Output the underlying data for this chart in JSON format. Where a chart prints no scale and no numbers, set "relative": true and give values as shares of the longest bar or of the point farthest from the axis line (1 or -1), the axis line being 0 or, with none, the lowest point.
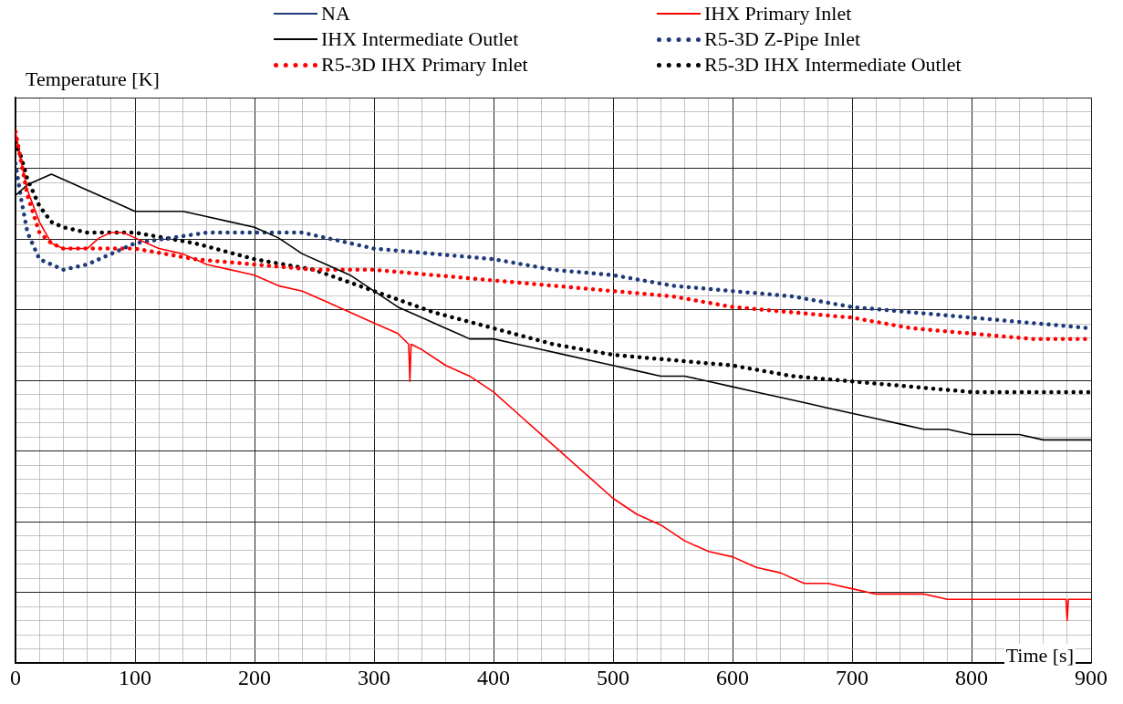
{
  "chart_data": {
    "type": "line",
    "relative": true,
    "xlabel": "Time [s]",
    "ylabel": "Temperature [K]",
    "xlim": [
      0,
      900
    ],
    "xticks": [
      0,
      100,
      200,
      300,
      400,
      500,
      600,
      700,
      800,
      900
    ],
    "grid": true,
    "legend": "top",
    "marker": "none",
    "series": [
      {
        "name": "NA",
        "color": "#1f3a7a",
        "line_style": "solid"
      },
      {
        "name": "IHX Primary Inlet",
        "color": "#ff0000",
        "line_style": "solid",
        "x": [
          0,
          5,
          10,
          20,
          30,
          40,
          50,
          60,
          70,
          80,
          90,
          100,
          110,
          120,
          140,
          160,
          180,
          200,
          220,
          240,
          260,
          280,
          300,
          320,
          329,
          330,
          331,
          340,
          360,
          380,
          400,
          420,
          440,
          460,
          480,
          500,
          520,
          540,
          560,
          580,
          600,
          620,
          640,
          660,
          680,
          700,
          720,
          740,
          760,
          780,
          800,
          850,
          879,
          880,
          881,
          900
        ],
        "values": [
          1.0,
          0.94,
          0.89,
          0.83,
          0.79,
          0.78,
          0.78,
          0.78,
          0.8,
          0.81,
          0.81,
          0.8,
          0.79,
          0.78,
          0.77,
          0.75,
          0.74,
          0.73,
          0.71,
          0.7,
          0.68,
          0.66,
          0.64,
          0.62,
          0.6,
          0.53,
          0.6,
          0.59,
          0.56,
          0.54,
          0.51,
          0.47,
          0.43,
          0.39,
          0.35,
          0.31,
          0.28,
          0.26,
          0.23,
          0.21,
          0.2,
          0.18,
          0.17,
          0.15,
          0.15,
          0.14,
          0.13,
          0.13,
          0.13,
          0.12,
          0.12,
          0.12,
          0.12,
          0.08,
          0.12,
          0.12
        ]
      },
      {
        "name": "IHX Intermediate Outlet",
        "color": "#000000",
        "line_style": "solid",
        "x": [
          0,
          10,
          20,
          30,
          40,
          60,
          80,
          100,
          120,
          140,
          160,
          180,
          200,
          220,
          240,
          260,
          280,
          300,
          320,
          340,
          360,
          380,
          400,
          420,
          440,
          460,
          480,
          500,
          520,
          540,
          560,
          580,
          600,
          620,
          640,
          660,
          680,
          700,
          720,
          740,
          760,
          780,
          800,
          820,
          840,
          860,
          880,
          900
        ],
        "values": [
          0.88,
          0.9,
          0.91,
          0.92,
          0.91,
          0.89,
          0.87,
          0.85,
          0.85,
          0.85,
          0.84,
          0.83,
          0.82,
          0.8,
          0.77,
          0.75,
          0.73,
          0.7,
          0.67,
          0.65,
          0.63,
          0.61,
          0.61,
          0.6,
          0.59,
          0.58,
          0.57,
          0.56,
          0.55,
          0.54,
          0.54,
          0.53,
          0.52,
          0.51,
          0.5,
          0.49,
          0.48,
          0.47,
          0.46,
          0.45,
          0.44,
          0.44,
          0.43,
          0.43,
          0.43,
          0.42,
          0.42,
          0.42
        ]
      },
      {
        "name": "R5-3D Z-Pipe Inlet",
        "color": "#1f3a7a",
        "line_style": "dotted",
        "x": [
          0,
          5,
          10,
          20,
          30,
          40,
          60,
          80,
          100,
          130,
          160,
          200,
          240,
          280,
          300,
          350,
          400,
          450,
          500,
          550,
          600,
          650,
          700,
          750,
          800,
          850,
          900
        ],
        "values": [
          0.94,
          0.87,
          0.81,
          0.76,
          0.75,
          0.74,
          0.75,
          0.77,
          0.79,
          0.8,
          0.81,
          0.81,
          0.81,
          0.79,
          0.78,
          0.77,
          0.76,
          0.74,
          0.73,
          0.71,
          0.7,
          0.69,
          0.67,
          0.66,
          0.65,
          0.64,
          0.63
        ]
      },
      {
        "name": "R5-3D IHX Primary Inlet",
        "color": "#ff0000",
        "line_style": "dotted",
        "x": [
          0,
          5,
          10,
          20,
          30,
          40,
          50,
          60,
          80,
          100,
          150,
          200,
          250,
          300,
          350,
          400,
          450,
          500,
          550,
          600,
          650,
          700,
          750,
          800,
          850,
          900
        ],
        "values": [
          1.0,
          0.94,
          0.88,
          0.81,
          0.79,
          0.78,
          0.78,
          0.78,
          0.78,
          0.78,
          0.76,
          0.75,
          0.74,
          0.74,
          0.73,
          0.72,
          0.71,
          0.7,
          0.69,
          0.67,
          0.66,
          0.65,
          0.63,
          0.62,
          0.61,
          0.61
        ]
      },
      {
        "name": "R5-3D IHX Intermediate Outlet",
        "color": "#000000",
        "line_style": "dotted",
        "x": [
          0,
          5,
          10,
          20,
          30,
          40,
          60,
          100,
          150,
          200,
          250,
          300,
          350,
          400,
          450,
          500,
          550,
          600,
          650,
          700,
          750,
          800,
          850,
          900
        ],
        "values": [
          0.98,
          0.95,
          0.91,
          0.86,
          0.83,
          0.82,
          0.81,
          0.81,
          0.79,
          0.76,
          0.74,
          0.7,
          0.66,
          0.63,
          0.6,
          0.58,
          0.57,
          0.56,
          0.54,
          0.53,
          0.52,
          0.51,
          0.51,
          0.51
        ]
      }
    ]
  }
}
